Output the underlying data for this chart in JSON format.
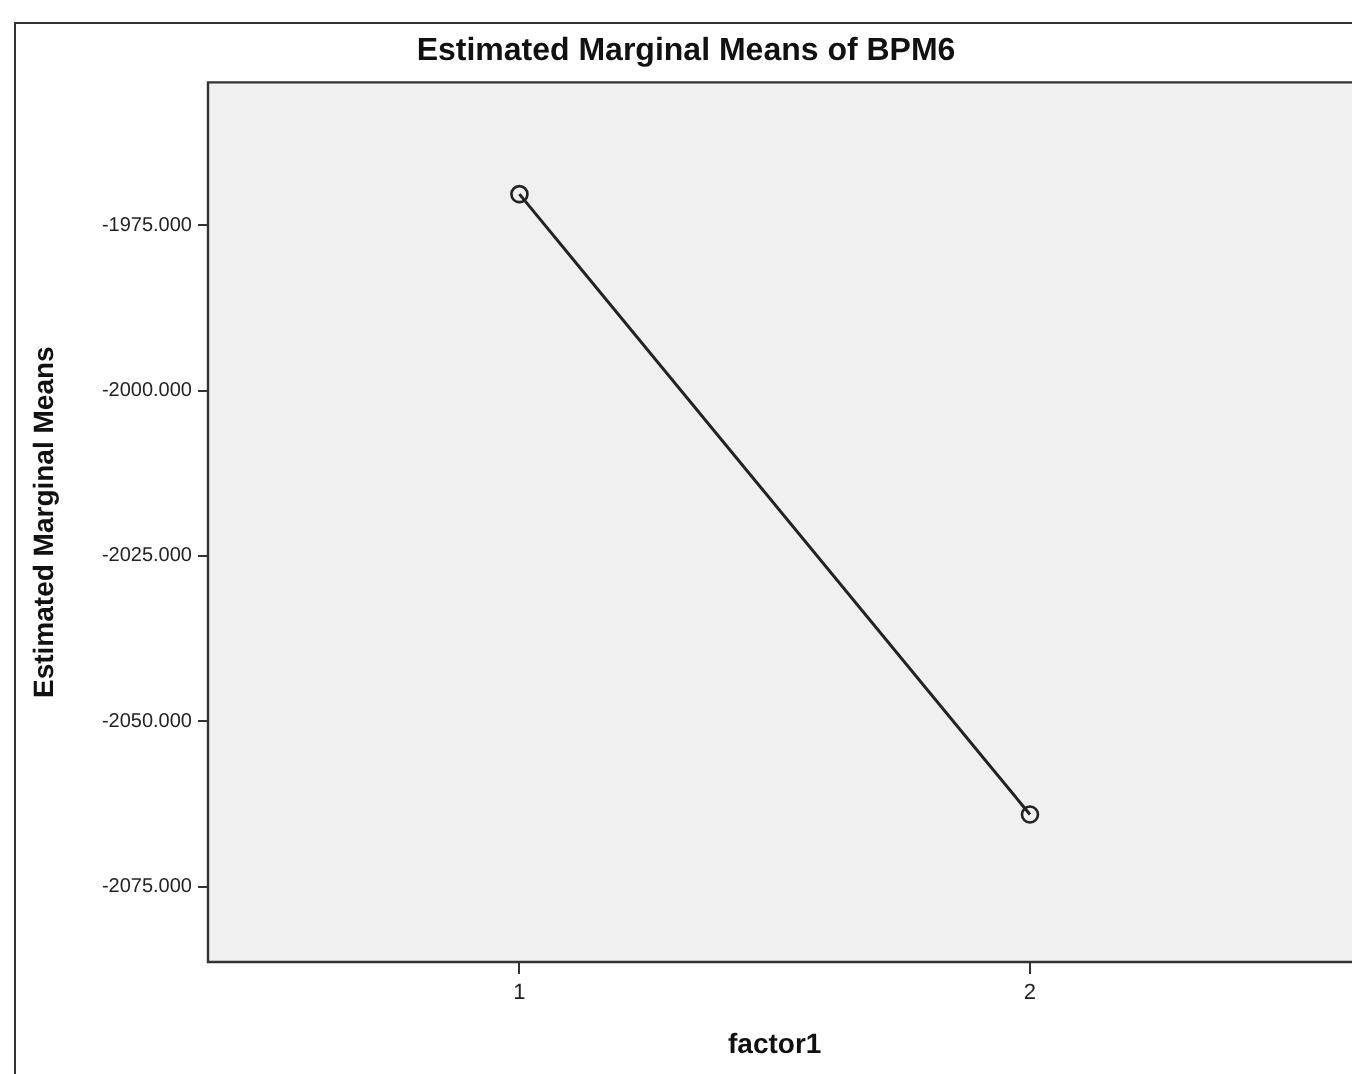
{
  "chart_data": {
    "type": "line",
    "title": "Estimated Marginal Means of BPM6",
    "xlabel": "factor1",
    "ylabel": "Estimated Marginal Means",
    "categories": [
      "1",
      "2"
    ],
    "series": [
      {
        "color": "#222222",
        "values": [
          -1970.3,
          -2064.1
        ]
      }
    ],
    "ylim": [
      -2086.4,
      -1953.4
    ],
    "yticks": [
      {
        "value": -1975,
        "label": "-1975.000"
      },
      {
        "value": -2000,
        "label": "-2000.000"
      },
      {
        "value": -2025,
        "label": "-2025.000"
      },
      {
        "value": -2050,
        "label": "-2050.000"
      },
      {
        "value": -2075,
        "label": "-2075.000"
      }
    ],
    "grid": false,
    "legend": false,
    "marker": "circle",
    "line_style": "solid"
  }
}
